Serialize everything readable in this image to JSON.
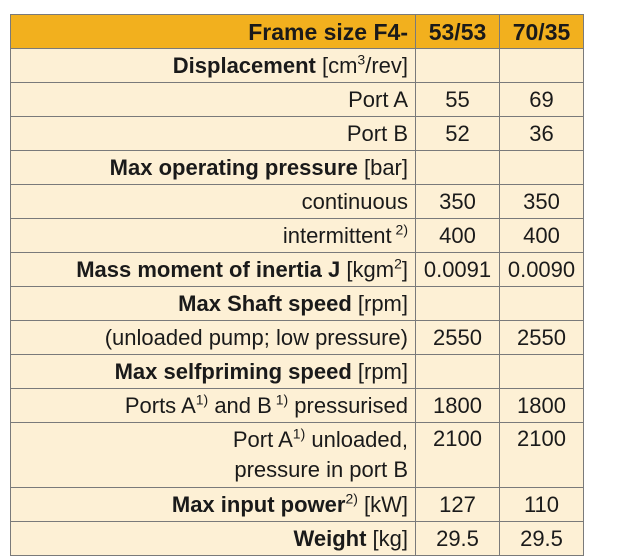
{
  "header": {
    "frame_label": "Frame size F4-",
    "col1": "53/53",
    "col2": "70/35"
  },
  "rows": {
    "displacement": {
      "label": "Displacement",
      "unit_pre": " [cm",
      "unit_sup": "3",
      "unit_post": "/rev]"
    },
    "port_a": {
      "label": "Port A",
      "v1": "55",
      "v2": "69"
    },
    "port_b": {
      "label": "Port B",
      "v1": "52",
      "v2": "36"
    },
    "max_pressure": {
      "label": "Max operating pressure",
      "unit": " [bar]"
    },
    "continuous": {
      "label": "continuous",
      "v1": "350",
      "v2": "350"
    },
    "intermittent": {
      "label": "intermittent",
      "sup": " 2)",
      "v1": "400",
      "v2": "400"
    },
    "inertia": {
      "label": "Mass moment of inertia J",
      "unit_pre": " [kgm",
      "unit_sup": "2",
      "unit_post": "]",
      "v1": "0.0091",
      "v2": "0.0090"
    },
    "shaft_speed": {
      "label": "Max Shaft speed",
      "unit": " [rpm]"
    },
    "unloaded_pump": {
      "label": "(unloaded pump; low pressure)",
      "v1": "2550",
      "v2": "2550"
    },
    "selfpriming": {
      "label": "Max selfpriming speed",
      "unit": " [rpm]"
    },
    "ports_pressurised": {
      "part1": "Ports A",
      "sup1": "1)",
      "part2": " and B",
      "sup2": " 1)",
      "part3": " pressurised",
      "v1": "1800",
      "v2": "1800"
    },
    "port_a_unloaded": {
      "part1": "Port A",
      "sup1": "1)",
      "part2": " unloaded,",
      "line2": "pressure in port B",
      "v1": "2100",
      "v2": "2100"
    },
    "input_power": {
      "label": "Max input power",
      "sup": "2)",
      "unit": " [kW]",
      "v1": "127",
      "v2": "110"
    },
    "weight": {
      "label": "Weight",
      "unit": " [kg]",
      "v1": "29.5",
      "v2": "29.5"
    }
  },
  "colors": {
    "header_bg": "#f2b01e",
    "cell_bg": "#fdf0d5",
    "border": "#7a7a7a"
  }
}
